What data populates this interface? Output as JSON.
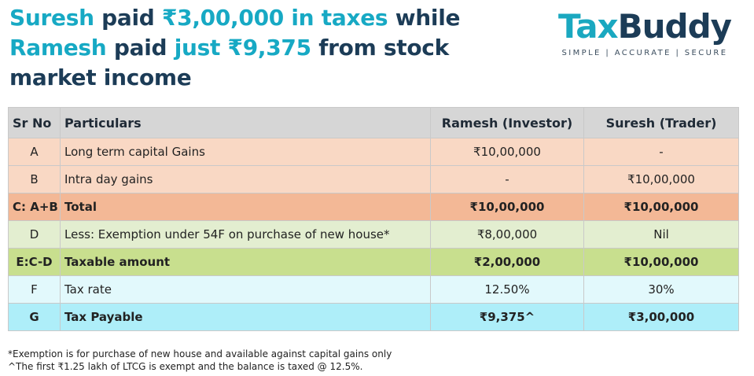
{
  "headline": {
    "l1_a": "Suresh",
    "l1_b": " paid ",
    "l1_c": "₹3,00,000 in taxes",
    "l1_d": " while",
    "l2_a": "Ramesh",
    "l2_b": " paid ",
    "l2_c": "just ₹9,375",
    "l2_d": " from stock",
    "l3": "market income"
  },
  "logo": {
    "tax": "Tax",
    "buddy": "Buddy",
    "tagline": "SIMPLE | ACCURATE | SECURE"
  },
  "colors": {
    "teal": "#17a9c4",
    "navy": "#1c3c57",
    "header_gray": "#d6d6d6",
    "peach": "#f9d8c4",
    "orange": "#f3b896",
    "light_green": "#e3eed0",
    "green": "#c8df8e",
    "light_cyan": "#e2f9fc",
    "cyan": "#aeeef9"
  },
  "table": {
    "headers": [
      "Sr No",
      "Particulars",
      "Ramesh (Investor)",
      "Suresh (Trader)"
    ],
    "rows": [
      {
        "sr": "A",
        "particular": "Long term capital Gains",
        "ramesh": "₹10,00,000",
        "suresh": "-"
      },
      {
        "sr": "B",
        "particular": "Intra day gains",
        "ramesh": "-",
        "suresh": "₹10,00,000"
      },
      {
        "sr": "C: A+B",
        "particular": "Total",
        "ramesh": "₹10,00,000",
        "suresh": "₹10,00,000"
      },
      {
        "sr": "D",
        "particular": "Less: Exemption under 54F on purchase of new house*",
        "ramesh": "₹8,00,000",
        "suresh": "Nil"
      },
      {
        "sr": "E:C-D",
        "particular": "Taxable amount",
        "ramesh": "₹2,00,000",
        "suresh": "₹10,00,000"
      },
      {
        "sr": "F",
        "particular": "Tax rate",
        "ramesh": "12.50%",
        "suresh": "30%"
      },
      {
        "sr": "G",
        "particular": "Tax Payable",
        "ramesh": "₹9,375^",
        "suresh": "₹3,00,000"
      }
    ]
  },
  "notes": [
    "*Exemption is for purchase of new house and available against capital gains only",
    "^The first ₹1.25 lakh of LTCG is exempt and the balance is taxed @ 12.5%."
  ]
}
